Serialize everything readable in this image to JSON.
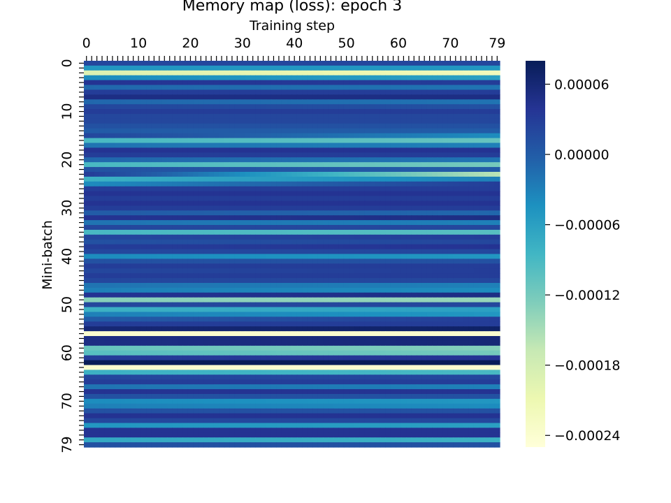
{
  "chart_data": {
    "type": "heatmap",
    "title": "Memory map (loss): epoch 3",
    "xlabel": "Training step",
    "ylabel": "Mini-batch",
    "x_tick_labels": [
      "0",
      "10",
      "20",
      "30",
      "40",
      "50",
      "60",
      "70",
      "79"
    ],
    "y_tick_labels": [
      "0",
      "10",
      "20",
      "30",
      "40",
      "50",
      "60",
      "70",
      "79"
    ],
    "colorbar_tick_labels": [
      "0.00006",
      "0.00000",
      "−0.00006",
      "−0.00012",
      "−0.00018",
      "−0.00024"
    ],
    "colorbar_ticks": [
      6e-05,
      0.0,
      -6e-05,
      -0.00012,
      -0.00018,
      -0.00024
    ],
    "vmin": -0.00025,
    "vmax": 8e-05,
    "colormap": "YlGnBu",
    "colormap_stops": [
      "#ffffd9",
      "#edf8b1",
      "#c7e9b4",
      "#7fcdbb",
      "#41b6c4",
      "#1d91c0",
      "#225ea8",
      "#253494",
      "#081d58"
    ],
    "n_steps": 80,
    "n_batches": 80,
    "row_values_start": [
      2e-05,
      -5e-05,
      -0.00019,
      -4e-05,
      4e-05,
      -1e-05,
      3e-05,
      5e-05,
      -1e-05,
      2e-05,
      3e-05,
      2e-05,
      2e-05,
      1e-05,
      0.0,
      2e-05,
      -9e-05,
      -2e-05,
      4e-05,
      3e-05,
      -1e-05,
      -9e-05,
      1e-05,
      3e-05,
      -8e-05,
      -4e-05,
      3e-05,
      4e-05,
      3e-05,
      4e-05,
      3e-05,
      0.0,
      4e-05,
      -2e-05,
      2e-05,
      -9e-05,
      2e-05,
      1e-05,
      3e-05,
      2e-05,
      -4e-05,
      1e-05,
      3e-05,
      2e-05,
      3e-05,
      2e-05,
      -2e-05,
      -3e-05,
      4e-05,
      -0.00013,
      2e-05,
      -8e-05,
      -3e-05,
      0.0,
      3e-05,
      6e-05,
      -0.00024,
      5e-05,
      5e-05,
      -0.00011,
      -0.0001,
      3e-05,
      8e-05,
      -0.00024,
      -8e-05,
      2e-05,
      3e-05,
      -2e-05,
      4e-05,
      1e-05,
      -4e-05,
      -3e-05,
      1e-05,
      4e-05,
      2e-05,
      -5e-05,
      4e-05,
      4e-05,
      -7e-05,
      1e-05
    ],
    "row_values_end": [
      2e-05,
      -5e-05,
      -0.00022,
      -6e-05,
      3e-05,
      -2e-05,
      3e-05,
      5e-05,
      -2e-05,
      1e-05,
      3e-05,
      2e-05,
      2e-05,
      1e-05,
      0.0,
      -4e-05,
      -0.00011,
      -3e-05,
      4e-05,
      3e-05,
      -2e-05,
      -0.00012,
      0.0,
      -0.00016,
      -3e-05,
      3e-05,
      3e-05,
      4e-05,
      3e-05,
      4e-05,
      3e-05,
      -1e-05,
      5e-05,
      -3e-05,
      2e-05,
      -0.0001,
      3e-05,
      2e-05,
      4e-05,
      2e-05,
      -5e-05,
      1e-05,
      3e-05,
      3e-05,
      3e-05,
      2e-05,
      -3e-05,
      -4e-05,
      5e-05,
      -0.00014,
      2e-05,
      -6e-05,
      -5e-05,
      3e-05,
      3e-05,
      7e-05,
      -0.00024,
      6e-05,
      6e-05,
      -0.00013,
      -0.00012,
      4e-05,
      8e-05,
      -0.00024,
      -9e-05,
      2e-05,
      3e-05,
      -3e-05,
      4e-05,
      1e-05,
      -5e-05,
      -4e-05,
      1e-05,
      4e-05,
      2e-05,
      -6e-05,
      4e-05,
      4e-05,
      -8e-05,
      1e-05
    ]
  }
}
